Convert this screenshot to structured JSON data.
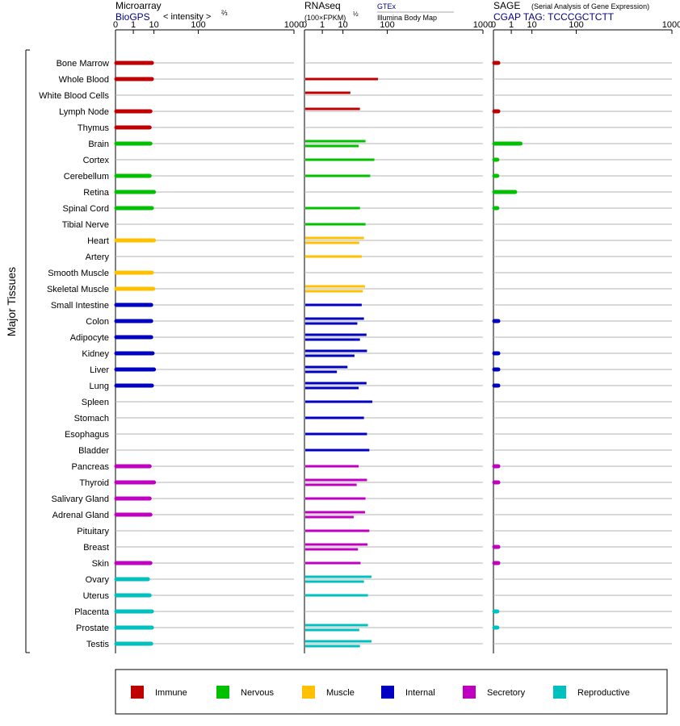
{
  "panels": {
    "microarray": {
      "title": "Microarray",
      "source": "BioGPS",
      "unit": "< intensity >",
      "unit_exp": "⅔"
    },
    "rnaseq": {
      "title": "RNAseq",
      "unit": "(100×FPKM)",
      "unit_exp": "½",
      "legend_gtex": "GTEx",
      "legend_ibm": "Illumina Body Map"
    },
    "sage": {
      "title": "SAGE",
      "subtitle": "(Serial Analysis of Gene Expression)",
      "tag": "CGAP TAG: TCCCGCTCTT"
    }
  },
  "side_label": "Major Tissues",
  "legend": [
    {
      "label": "Immune",
      "color": "#c00000"
    },
    {
      "label": "Nervous",
      "color": "#00c000"
    },
    {
      "label": "Muscle",
      "color": "#ffc000"
    },
    {
      "label": "Internal",
      "color": "#0000c0"
    },
    {
      "label": "Secretory",
      "color": "#c000c0"
    },
    {
      "label": "Reproductive",
      "color": "#00c0c0"
    }
  ],
  "chart_data": {
    "type": "bar",
    "x_scale": "power",
    "xlim": [
      0,
      1000
    ],
    "x_ticks": [
      "0",
      "1",
      "10",
      "100",
      "1000"
    ],
    "tissues": [
      {
        "name": "Bone Marrow",
        "group": "Immune",
        "microarray": 8.5,
        "gtex": null,
        "ibm": null,
        "sage": 0.02
      },
      {
        "name": "Whole Blood",
        "group": "Immune",
        "microarray": 8.5,
        "gtex": 70,
        "ibm": null,
        "sage": null
      },
      {
        "name": "White Blood Cells",
        "group": "Immune",
        "microarray": null,
        "gtex": null,
        "ibm": 17,
        "sage": null
      },
      {
        "name": "Lymph Node",
        "group": "Immune",
        "microarray": 7.5,
        "gtex": null,
        "ibm": 30,
        "sage": 0.02
      },
      {
        "name": "Thymus",
        "group": "Immune",
        "microarray": 7,
        "gtex": null,
        "ibm": null,
        "sage": null
      },
      {
        "name": "Brain",
        "group": "Nervous",
        "microarray": 7.5,
        "gtex": 40,
        "ibm": 28,
        "sage": 3.5
      },
      {
        "name": "Cortex",
        "group": "Nervous",
        "microarray": null,
        "gtex": 60,
        "ibm": null,
        "sage": 0.01
      },
      {
        "name": "Cerebellum",
        "group": "Nervous",
        "microarray": 7,
        "gtex": 50,
        "ibm": null,
        "sage": 0.01
      },
      {
        "name": "Retina",
        "group": "Nervous",
        "microarray": 10,
        "gtex": null,
        "ibm": null,
        "sage": 1.8
      },
      {
        "name": "Spinal Cord",
        "group": "Nervous",
        "microarray": 8.5,
        "gtex": 30,
        "ibm": null,
        "sage": 0.01
      },
      {
        "name": "Tibial Nerve",
        "group": "Nervous",
        "microarray": null,
        "gtex": 40,
        "ibm": null,
        "sage": null
      },
      {
        "name": "Heart",
        "group": "Muscle",
        "microarray": 10,
        "gtex": 37,
        "ibm": 29,
        "sage": null
      },
      {
        "name": "Artery",
        "group": "Muscle",
        "microarray": null,
        "gtex": 33,
        "ibm": null,
        "sage": null
      },
      {
        "name": "Smooth Muscle",
        "group": "Muscle",
        "microarray": 8.5,
        "gtex": null,
        "ibm": null,
        "sage": null
      },
      {
        "name": "Skeletal Muscle",
        "group": "Muscle",
        "microarray": 9.5,
        "gtex": 39,
        "ibm": 35,
        "sage": null
      },
      {
        "name": "Small Intestine",
        "group": "Internal",
        "microarray": 8,
        "gtex": 33,
        "ibm": null,
        "sage": null
      },
      {
        "name": "Colon",
        "group": "Internal",
        "microarray": 8,
        "gtex": 37,
        "ibm": 26,
        "sage": 0.02
      },
      {
        "name": "Adipocyte",
        "group": "Internal",
        "microarray": 8,
        "gtex": 42,
        "ibm": 30,
        "sage": null
      },
      {
        "name": "Kidney",
        "group": "Internal",
        "microarray": 9,
        "gtex": 43,
        "ibm": 22,
        "sage": 0.02
      },
      {
        "name": "Liver",
        "group": "Internal",
        "microarray": 10,
        "gtex": 14,
        "ibm": 6,
        "sage": 0.02
      },
      {
        "name": "Lung",
        "group": "Internal",
        "microarray": 8.5,
        "gtex": 42,
        "ibm": 28,
        "sage": 0.02
      },
      {
        "name": "Spleen",
        "group": "Internal",
        "microarray": null,
        "gtex": 55,
        "ibm": null,
        "sage": null
      },
      {
        "name": "Stomach",
        "group": "Internal",
        "microarray": null,
        "gtex": 37,
        "ibm": null,
        "sage": null
      },
      {
        "name": "Esophagus",
        "group": "Internal",
        "microarray": null,
        "gtex": 43,
        "ibm": null,
        "sage": null
      },
      {
        "name": "Bladder",
        "group": "Internal",
        "microarray": null,
        "gtex": 48,
        "ibm": null,
        "sage": null
      },
      {
        "name": "Pancreas",
        "group": "Secretory",
        "microarray": 7,
        "gtex": 28,
        "ibm": null,
        "sage": 0.02
      },
      {
        "name": "Thyroid",
        "group": "Secretory",
        "microarray": 10,
        "gtex": 43,
        "ibm": 25,
        "sage": 0.02
      },
      {
        "name": "Salivary Gland",
        "group": "Secretory",
        "microarray": 7,
        "gtex": 40,
        "ibm": null,
        "sage": null
      },
      {
        "name": "Adrenal Gland",
        "group": "Secretory",
        "microarray": 7.5,
        "gtex": 39,
        "ibm": 21,
        "sage": null
      },
      {
        "name": "Pituitary",
        "group": "Secretory",
        "microarray": null,
        "gtex": 48,
        "ibm": null,
        "sage": null
      },
      {
        "name": "Breast",
        "group": "Secretory",
        "microarray": null,
        "gtex": 44,
        "ibm": 27,
        "sage": 0.02
      },
      {
        "name": "Skin",
        "group": "Secretory",
        "microarray": 7.5,
        "gtex": 31,
        "ibm": null,
        "sage": 0.02
      },
      {
        "name": "Ovary",
        "group": "Reproductive",
        "microarray": 6,
        "gtex": 53,
        "ibm": 37,
        "sage": null
      },
      {
        "name": "Uterus",
        "group": "Reproductive",
        "microarray": 7,
        "gtex": 45,
        "ibm": null,
        "sage": null
      },
      {
        "name": "Placenta",
        "group": "Reproductive",
        "microarray": 8.5,
        "gtex": null,
        "ibm": null,
        "sage": 0.01
      },
      {
        "name": "Prostate",
        "group": "Reproductive",
        "microarray": 8.5,
        "gtex": 45,
        "ibm": 29,
        "sage": 0.01
      },
      {
        "name": "Testis",
        "group": "Reproductive",
        "microarray": 8,
        "gtex": 53,
        "ibm": 30,
        "sage": null
      }
    ]
  }
}
